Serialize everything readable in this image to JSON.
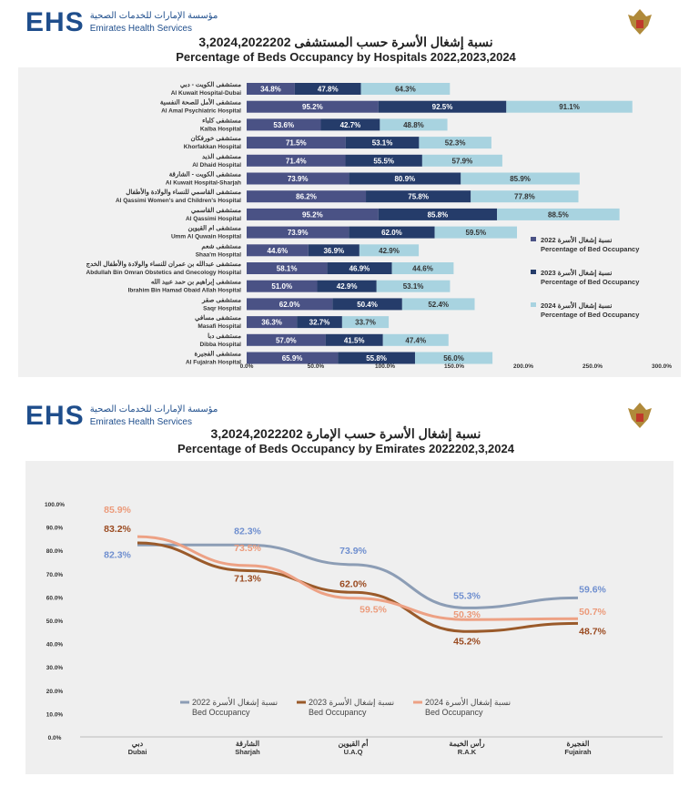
{
  "header": {
    "logo_text": "EHS",
    "org_ar": "مؤسسة الإمارات للخدمات الصحية",
    "org_en": "Emirates Health Services",
    "emblem_caption": "Emirates Health Services"
  },
  "section1": {
    "title_ar": "نسبة إشغال الأسرة حسب المستشفى 3,2024,2022202",
    "title_en": "Percentage of Beds Occupancy by Hospitals 2022,2023,2024"
  },
  "section2": {
    "title_ar": "نسبة إشغال الأسرة حسب الإمارة 3,2024,2022202",
    "title_en": "Percentage of Beds Occupancy by Emirates 2022202,3,2024"
  },
  "chart_data": [
    {
      "type": "bar",
      "orientation": "horizontal",
      "stacked": true,
      "legend": "right",
      "categories": [
        {
          "ar": "مستشفى الكويت - دبي",
          "en": "Al Kuwait Hospital-Dubai"
        },
        {
          "ar": "مستشفى الأمل للصحة النفسية",
          "en": "Al Amal Psychiatric Hospital"
        },
        {
          "ar": "مستشفى كلباء",
          "en": "Kalba Hospital"
        },
        {
          "ar": "مستشفى خورفكان",
          "en": "Khorfakkan Hospital"
        },
        {
          "ar": "مستشفى الذيد",
          "en": "Al Dhaid Hospital"
        },
        {
          "ar": "مستشفى الكويت - الشارقة",
          "en": "Al Kuwait Hospital-Sharjah"
        },
        {
          "ar": "مستشفى القاسمي للنساء والولادة والأطفال",
          "en": "Al Qassimi Women's and Children's Hospital"
        },
        {
          "ar": "مستشفى القاسمي",
          "en": "Al Qassimi Hospital"
        },
        {
          "ar": "مستشفى ام القيوين",
          "en": "Umm Al Quwain Hospital"
        },
        {
          "ar": "مستشفى شعم",
          "en": "Shaa'm Hospital"
        },
        {
          "ar": "مستشفى عبدالله بن عمران للنساء والولادة والأطفال الخدج",
          "en": "Abdullah Bin Omran Obstetics and Gnecology Hospital"
        },
        {
          "ar": "مستشفى إبراهيم بن حمد عبيد الله",
          "en": "Ibrahim Bin Hamad Obaid Allah Hospital"
        },
        {
          "ar": "مستشفى صقر",
          "en": "Saqr Hospital"
        },
        {
          "ar": "مستشفى مسافي",
          "en": "Masafi Hospital"
        },
        {
          "ar": "مستشفى دبا",
          "en": "Dibba Hospital"
        },
        {
          "ar": "مستشفى الفجيرة",
          "en": "Al Fujairah Hospital"
        }
      ],
      "series": [
        {
          "name": "نسبة إشغال الأسرة 2022",
          "name_en": "Percentage of Bed Occupancy",
          "color": "#4a5285",
          "values": [
            34.8,
            95.2,
            53.6,
            71.5,
            71.4,
            73.9,
            86.2,
            95.2,
            73.9,
            44.6,
            58.1,
            51.0,
            62.0,
            36.3,
            57.0,
            65.9
          ]
        },
        {
          "name": "نسبة إشغال الأسرة 2023",
          "name_en": "Percentage of Bed Occupancy",
          "color": "#253c6a",
          "values": [
            47.8,
            92.5,
            42.7,
            53.1,
            55.5,
            80.9,
            75.8,
            85.8,
            62.0,
            36.9,
            46.9,
            42.9,
            50.4,
            32.7,
            41.5,
            55.8
          ]
        },
        {
          "name": "نسبة إشغال الأسرة 2024",
          "name_en": "Percentage of Bed Occupancy",
          "color": "#a8d3e0",
          "values": [
            64.3,
            91.1,
            48.8,
            52.3,
            57.9,
            85.9,
            77.8,
            88.5,
            59.5,
            42.9,
            44.6,
            53.1,
            52.4,
            33.7,
            47.4,
            56.0
          ]
        }
      ],
      "xlim": [
        0,
        300
      ],
      "xticks": [
        "0.0%",
        "50.0%",
        "100.0%",
        "150.0%",
        "200.0%",
        "250.0%",
        "300.0%"
      ]
    },
    {
      "type": "line",
      "legend": "bottom",
      "grid": false,
      "categories": [
        {
          "ar": "دبي",
          "en": "Dubai"
        },
        {
          "ar": "الشارقة",
          "en": "Sharjah"
        },
        {
          "ar": "أم القيوين",
          "en": "U.A.Q"
        },
        {
          "ar": "رأس الخيمة",
          "en": "R.A.K"
        },
        {
          "ar": "الفجيرة",
          "en": "Fujairah"
        }
      ],
      "series": [
        {
          "name": "نسبة إشغال الأسرة 2022",
          "name_en": "Bed Occupancy",
          "color": "#8c9db5",
          "label_color": "#6f8fcf",
          "values": [
            82.3,
            82.3,
            73.9,
            55.3,
            59.6
          ]
        },
        {
          "name": "نسبة إشغال الأسرة 2023",
          "name_en": "Bed Occupancy",
          "color": "#9a5a2a",
          "label_color": "#9a4a20",
          "values": [
            83.2,
            71.3,
            62.0,
            45.2,
            48.7
          ]
        },
        {
          "name": "نسبة إشغال الأسرة 2024",
          "name_en": "Bed Occupancy",
          "color": "#eda184",
          "label_color": "#ec9a7a",
          "values": [
            85.9,
            73.5,
            59.5,
            50.3,
            50.7
          ]
        }
      ],
      "ylim": [
        0,
        100
      ],
      "yticks": [
        "0.0%",
        "10.0%",
        "20.0%",
        "30.0%",
        "40.0%",
        "50.0%",
        "60.0%",
        "70.0%",
        "80.0%",
        "90.0%",
        "100.0%"
      ]
    }
  ]
}
